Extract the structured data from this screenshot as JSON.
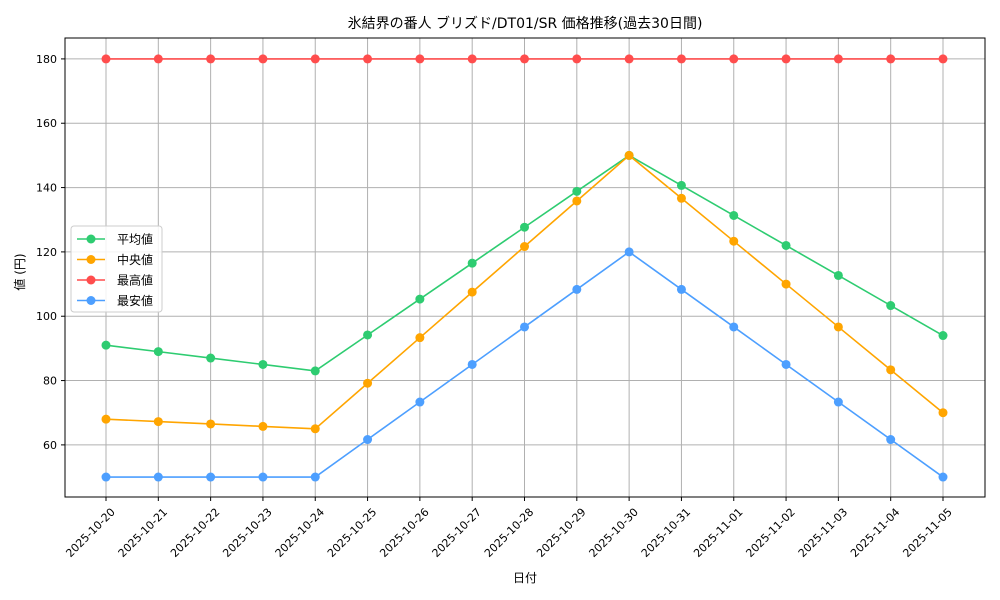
{
  "chart_data": {
    "type": "line",
    "title": "氷結界の番人 ブリズド/DT01/SR 価格推移(過去30日間)",
    "xlabel": "日付",
    "ylabel": "値 (円)",
    "ylim": [
      43.8,
      186.5
    ],
    "yticks": [
      60,
      80,
      100,
      120,
      140,
      160,
      180
    ],
    "grid": true,
    "legend_position": "center-left",
    "x": [
      "2025-10-20",
      "2025-10-21",
      "2025-10-22",
      "2025-10-23",
      "2025-10-24",
      "2025-10-25",
      "2025-10-26",
      "2025-10-27",
      "2025-10-28",
      "2025-10-29",
      "2025-10-30",
      "2025-10-31",
      "2025-11-01",
      "2025-11-02",
      "2025-11-03",
      "2025-11-04",
      "2025-11-05"
    ],
    "series": [
      {
        "name": "平均値",
        "color": "#2ecc71",
        "values": [
          91,
          89,
          87,
          85,
          83,
          94.17,
          105.33,
          116.5,
          127.67,
          138.83,
          150,
          140.67,
          131.33,
          122,
          112.67,
          103.33,
          94
        ]
      },
      {
        "name": "中央値",
        "color": "#ffa500",
        "values": [
          68,
          67.25,
          66.5,
          65.75,
          65,
          79.17,
          93.33,
          107.5,
          121.67,
          135.83,
          150,
          136.67,
          123.33,
          110,
          96.67,
          83.33,
          70
        ]
      },
      {
        "name": "最高値",
        "color": "#ff4d4d",
        "values": [
          180,
          180,
          180,
          180,
          180,
          180,
          180,
          180,
          180,
          180,
          180,
          180,
          180,
          180,
          180,
          180,
          180
        ]
      },
      {
        "name": "最安値",
        "color": "#4d9fff",
        "values": [
          50,
          50,
          50,
          50,
          50,
          61.67,
          73.33,
          85,
          96.67,
          108.33,
          120,
          108.33,
          96.67,
          85,
          73.33,
          61.67,
          50
        ]
      }
    ]
  }
}
